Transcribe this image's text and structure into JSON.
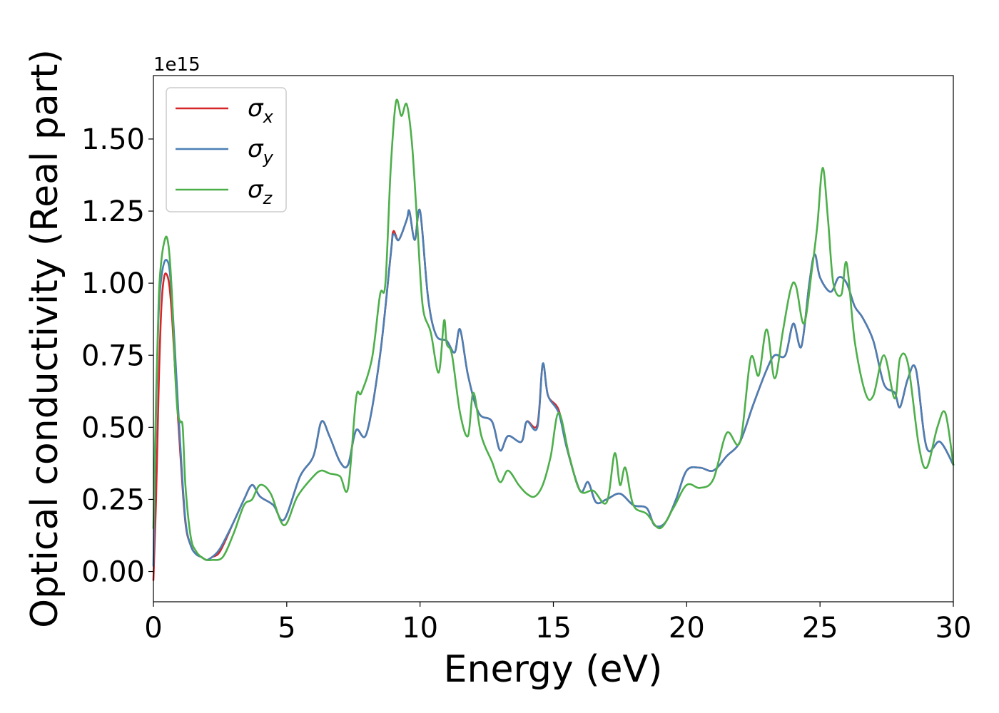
{
  "chart_data": {
    "type": "line",
    "xlabel": "Energy (eV)",
    "ylabel": "Optical conductivity (Real part)",
    "y_offset_label": "1e15",
    "xlim": [
      0,
      30
    ],
    "ylim": [
      -0.105,
      1.72
    ],
    "x_ticks": [
      0,
      5,
      10,
      15,
      20,
      25,
      30
    ],
    "x_tick_labels": [
      "0",
      "5",
      "10",
      "15",
      "20",
      "25",
      "30"
    ],
    "y_ticks": [
      0.0,
      0.25,
      0.5,
      0.75,
      1.0,
      1.25,
      1.5
    ],
    "y_tick_labels": [
      "0.00",
      "0.25",
      "0.50",
      "0.75",
      "1.00",
      "1.25",
      "1.50"
    ],
    "grid": false,
    "legend_position": "top-left",
    "series": [
      {
        "name": "σ_x",
        "legend_base": "σ",
        "legend_sub": "x",
        "color": "#d62728",
        "x": [
          0,
          0.1,
          0.2,
          0.3,
          0.4,
          0.5,
          0.6,
          0.7,
          0.8,
          1.0,
          1.2,
          1.4,
          1.6,
          1.8,
          2.0,
          2.2,
          2.5,
          3.0,
          3.4,
          3.7,
          4.0,
          4.5,
          4.9,
          5.5,
          6.0,
          6.3,
          6.6,
          7.0,
          7.3,
          7.6,
          8.0,
          8.5,
          8.9,
          9.0,
          9.2,
          9.5,
          9.6,
          9.8,
          10.0,
          10.3,
          10.6,
          11.0,
          11.3,
          11.5,
          11.8,
          12.2,
          12.7,
          13.0,
          13.3,
          13.8,
          14.0,
          14.4,
          14.6,
          14.8,
          15.2,
          15.5,
          16.0,
          16.3,
          16.6,
          17.0,
          17.5,
          18.0,
          18.5,
          18.8,
          19.2,
          19.6,
          20.0,
          20.5,
          21.0,
          21.5,
          22.0,
          22.5,
          23.0,
          23.3,
          23.7,
          24.0,
          24.3,
          24.6,
          24.8,
          25.0,
          25.4,
          25.7,
          26.0,
          26.3,
          26.6,
          27.0,
          27.4,
          27.8,
          28.0,
          28.3,
          28.6,
          29.0,
          29.5,
          30.0
        ],
        "y": [
          -0.03,
          0.25,
          0.65,
          0.92,
          1.02,
          1.03,
          0.99,
          0.88,
          0.72,
          0.42,
          0.17,
          0.09,
          0.06,
          0.05,
          0.04,
          0.05,
          0.07,
          0.17,
          0.25,
          0.3,
          0.26,
          0.23,
          0.18,
          0.33,
          0.4,
          0.52,
          0.47,
          0.38,
          0.37,
          0.49,
          0.48,
          0.75,
          1.1,
          1.18,
          1.15,
          1.22,
          1.25,
          1.15,
          1.25,
          0.95,
          0.82,
          0.8,
          0.76,
          0.84,
          0.68,
          0.55,
          0.52,
          0.42,
          0.47,
          0.45,
          0.52,
          0.51,
          0.72,
          0.61,
          0.56,
          0.43,
          0.28,
          0.31,
          0.24,
          0.25,
          0.27,
          0.23,
          0.22,
          0.16,
          0.17,
          0.25,
          0.35,
          0.36,
          0.35,
          0.4,
          0.45,
          0.58,
          0.7,
          0.75,
          0.75,
          0.86,
          0.78,
          1.0,
          1.1,
          1.02,
          0.97,
          1.02,
          1.0,
          0.92,
          0.88,
          0.8,
          0.65,
          0.62,
          0.57,
          0.67,
          0.7,
          0.43,
          0.45,
          0.37
        ]
      },
      {
        "name": "σ_y",
        "legend_base": "σ",
        "legend_sub": "y",
        "color": "#4a7fb5",
        "x": [
          0,
          0.1,
          0.2,
          0.3,
          0.4,
          0.5,
          0.6,
          0.7,
          0.8,
          1.0,
          1.2,
          1.4,
          1.6,
          1.8,
          2.0,
          2.2,
          2.5,
          3.0,
          3.4,
          3.7,
          4.0,
          4.5,
          4.9,
          5.5,
          6.0,
          6.3,
          6.6,
          7.0,
          7.3,
          7.6,
          8.0,
          8.5,
          8.9,
          9.0,
          9.2,
          9.5,
          9.6,
          9.8,
          10.0,
          10.3,
          10.6,
          11.0,
          11.3,
          11.5,
          11.8,
          12.2,
          12.7,
          13.0,
          13.3,
          13.8,
          14.0,
          14.4,
          14.6,
          14.8,
          15.2,
          15.5,
          16.0,
          16.3,
          16.6,
          17.0,
          17.5,
          18.0,
          18.5,
          18.8,
          19.2,
          19.6,
          20.0,
          20.5,
          21.0,
          21.5,
          22.0,
          22.5,
          23.0,
          23.3,
          23.7,
          24.0,
          24.3,
          24.6,
          24.8,
          25.0,
          25.4,
          25.7,
          26.0,
          26.3,
          26.6,
          27.0,
          27.4,
          27.8,
          28.0,
          28.3,
          28.6,
          29.0,
          29.5,
          30.0
        ],
        "y": [
          0.02,
          0.55,
          0.9,
          1.02,
          1.07,
          1.08,
          1.05,
          0.94,
          0.78,
          0.45,
          0.18,
          0.09,
          0.06,
          0.05,
          0.04,
          0.05,
          0.08,
          0.17,
          0.25,
          0.3,
          0.26,
          0.23,
          0.18,
          0.33,
          0.4,
          0.52,
          0.47,
          0.38,
          0.37,
          0.49,
          0.48,
          0.75,
          1.1,
          1.17,
          1.15,
          1.22,
          1.25,
          1.15,
          1.25,
          0.95,
          0.82,
          0.8,
          0.76,
          0.84,
          0.68,
          0.55,
          0.52,
          0.42,
          0.47,
          0.45,
          0.52,
          0.5,
          0.72,
          0.61,
          0.55,
          0.43,
          0.28,
          0.31,
          0.24,
          0.25,
          0.27,
          0.23,
          0.22,
          0.16,
          0.17,
          0.25,
          0.35,
          0.36,
          0.35,
          0.4,
          0.45,
          0.58,
          0.7,
          0.75,
          0.75,
          0.86,
          0.78,
          1.0,
          1.1,
          1.02,
          0.97,
          1.02,
          1.0,
          0.92,
          0.88,
          0.8,
          0.65,
          0.62,
          0.57,
          0.67,
          0.7,
          0.43,
          0.45,
          0.37
        ]
      },
      {
        "name": "σ_z",
        "legend_base": "σ",
        "legend_sub": "z",
        "color": "#4daf4a",
        "x": [
          0,
          0.1,
          0.2,
          0.3,
          0.4,
          0.5,
          0.6,
          0.7,
          0.8,
          0.9,
          1.0,
          1.1,
          1.2,
          1.4,
          1.6,
          1.8,
          2.0,
          2.2,
          2.6,
          3.0,
          3.4,
          3.7,
          4.0,
          4.4,
          4.9,
          5.4,
          6.0,
          6.3,
          6.6,
          7.0,
          7.3,
          7.6,
          7.8,
          8.2,
          8.5,
          8.7,
          8.9,
          9.1,
          9.3,
          9.5,
          9.7,
          9.9,
          10.1,
          10.4,
          10.7,
          10.9,
          11.0,
          11.2,
          11.5,
          11.8,
          12.0,
          12.3,
          12.7,
          13.0,
          13.3,
          13.7,
          14.0,
          14.3,
          14.6,
          14.9,
          15.2,
          15.6,
          16.0,
          16.5,
          17.0,
          17.3,
          17.5,
          17.7,
          18.0,
          18.5,
          19.0,
          19.5,
          20.0,
          20.5,
          21.0,
          21.5,
          22.0,
          22.4,
          22.7,
          23.0,
          23.3,
          23.6,
          23.9,
          24.1,
          24.4,
          24.7,
          24.9,
          25.1,
          25.3,
          25.5,
          25.8,
          26.0,
          26.3,
          26.7,
          27.0,
          27.4,
          27.8,
          28.0,
          28.3,
          28.7,
          29.0,
          29.4,
          29.7,
          30.0
        ],
        "y": [
          0.15,
          0.6,
          0.95,
          1.08,
          1.14,
          1.16,
          1.1,
          0.95,
          0.72,
          0.56,
          0.52,
          0.5,
          0.3,
          0.12,
          0.07,
          0.05,
          0.04,
          0.04,
          0.05,
          0.13,
          0.23,
          0.25,
          0.3,
          0.27,
          0.16,
          0.26,
          0.33,
          0.35,
          0.34,
          0.33,
          0.29,
          0.6,
          0.62,
          0.74,
          0.96,
          1.0,
          1.4,
          1.63,
          1.58,
          1.62,
          1.48,
          1.2,
          0.92,
          0.83,
          0.69,
          0.87,
          0.79,
          0.75,
          0.55,
          0.47,
          0.62,
          0.47,
          0.38,
          0.31,
          0.35,
          0.3,
          0.27,
          0.26,
          0.3,
          0.4,
          0.55,
          0.4,
          0.28,
          0.28,
          0.24,
          0.41,
          0.3,
          0.36,
          0.23,
          0.2,
          0.15,
          0.22,
          0.3,
          0.29,
          0.32,
          0.48,
          0.45,
          0.74,
          0.68,
          0.84,
          0.67,
          0.83,
          0.98,
          0.99,
          0.86,
          1.05,
          1.2,
          1.4,
          1.22,
          1.0,
          0.96,
          1.07,
          0.8,
          0.62,
          0.61,
          0.75,
          0.6,
          0.74,
          0.72,
          0.44,
          0.36,
          0.5,
          0.55,
          0.37
        ]
      }
    ]
  }
}
